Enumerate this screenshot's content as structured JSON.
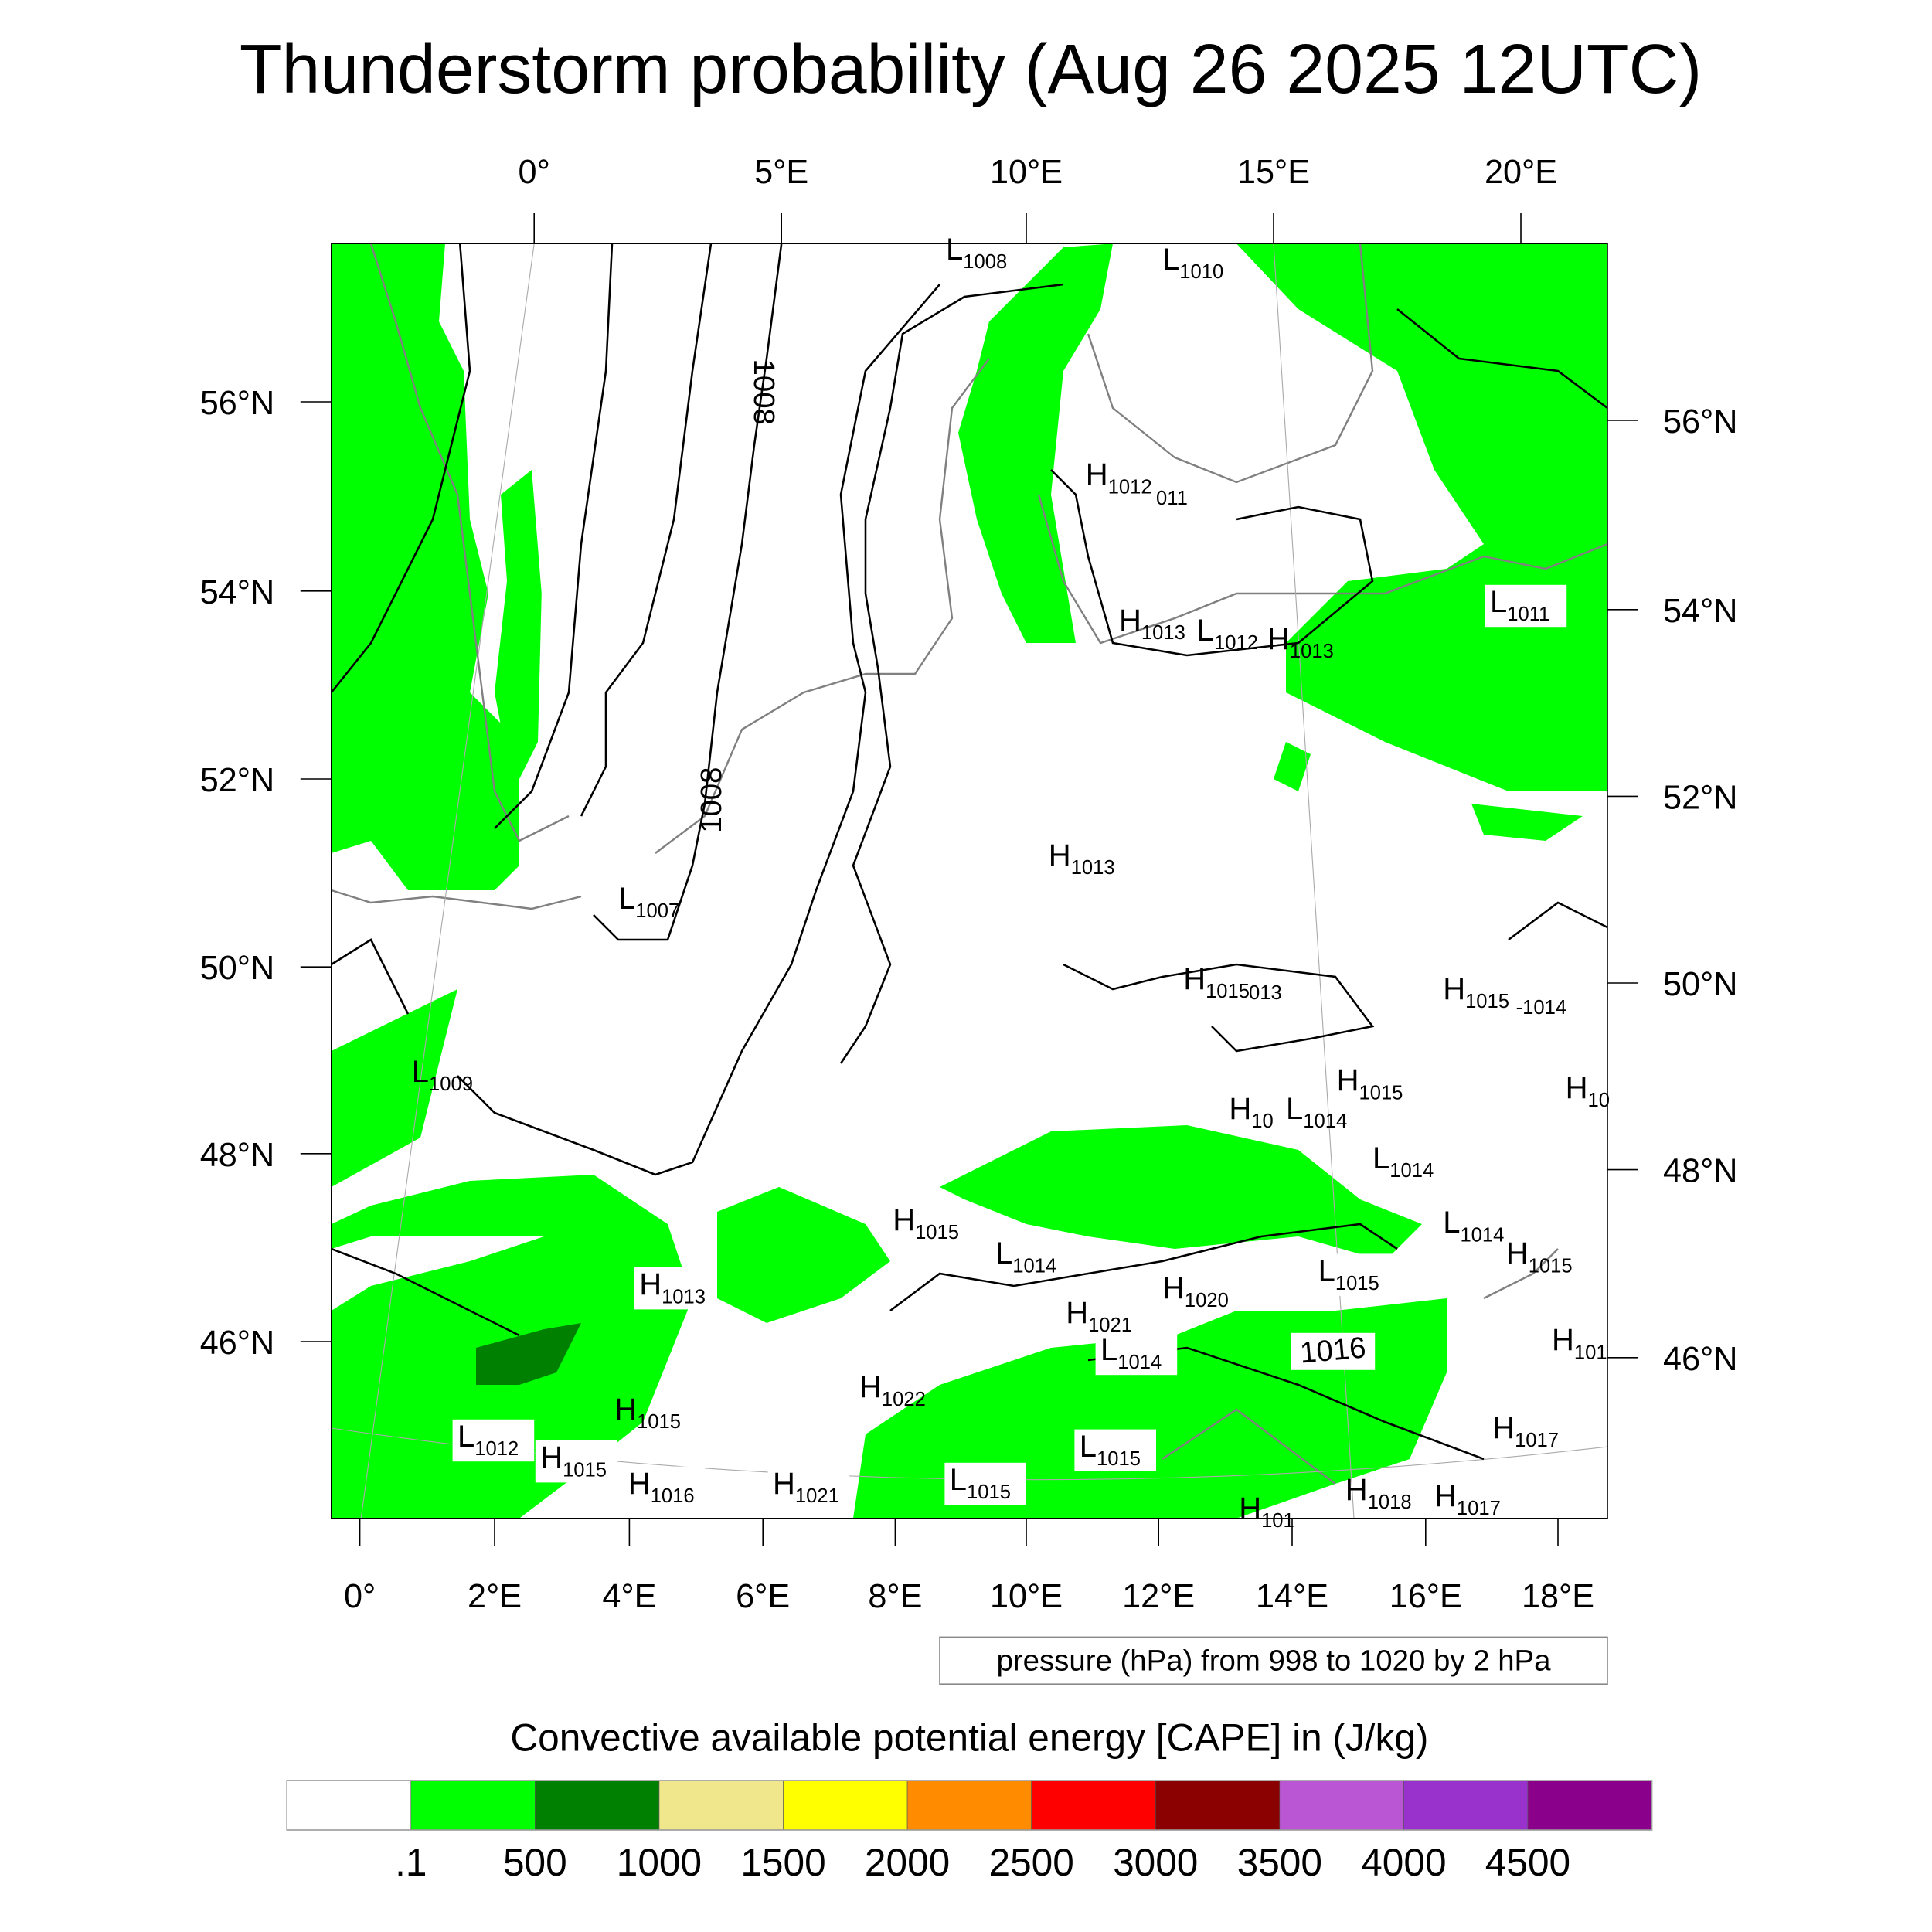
{
  "title": "Thunderstorm probability (Aug 26 2025 12UTC)",
  "axes": {
    "top_lon": [
      "0°",
      "5°E",
      "10°E",
      "15°E",
      "20°E"
    ],
    "bottom_lon": [
      "0°",
      "2°E",
      "4°E",
      "6°E",
      "8°E",
      "10°E",
      "12°E",
      "14°E",
      "16°E",
      "18°E"
    ],
    "left_lat": [
      "56°N",
      "54°N",
      "52°N",
      "50°N",
      "48°N",
      "46°N"
    ],
    "right_lat": [
      "56°N",
      "54°N",
      "52°N",
      "50°N",
      "48°N",
      "46°N"
    ]
  },
  "pressure_note": "pressure (hPa) from 998 to 1020 by 2 hPa",
  "contour_labels": [
    "1008",
    "1008",
    "1016"
  ],
  "pressure_centers": [
    {
      "t": "L",
      "v": "1008"
    },
    {
      "t": "L",
      "v": "1010"
    },
    {
      "t": "H",
      "v": "1012"
    },
    {
      "t": "",
      "v": "011"
    },
    {
      "t": "L",
      "v": "1011"
    },
    {
      "t": "H",
      "v": "1013"
    },
    {
      "t": "L",
      "v": "1012"
    },
    {
      "t": "H",
      "v": "1013"
    },
    {
      "t": "H",
      "v": "1013"
    },
    {
      "t": "L",
      "v": "1007"
    },
    {
      "t": "L",
      "v": "1009"
    },
    {
      "t": "H",
      "v": "1015"
    },
    {
      "t": "",
      "v": "013"
    },
    {
      "t": "H",
      "v": "1015"
    },
    {
      "t": "",
      "v": "-1014"
    },
    {
      "t": "H",
      "v": "1015"
    },
    {
      "t": "H",
      "v": "10"
    },
    {
      "t": "L",
      "v": "1014"
    },
    {
      "t": "L",
      "v": "1014"
    },
    {
      "t": "H",
      "v": "10"
    },
    {
      "t": "L",
      "v": "1014"
    },
    {
      "t": "H",
      "v": "1015"
    },
    {
      "t": "H",
      "v": "1015"
    },
    {
      "t": "L",
      "v": "1014"
    },
    {
      "t": "L",
      "v": "1015"
    },
    {
      "t": "H",
      "v": "1013"
    },
    {
      "t": "H",
      "v": "1021"
    },
    {
      "t": "H",
      "v": "1020"
    },
    {
      "t": "L",
      "v": "1014"
    },
    {
      "t": "H",
      "v": "101"
    },
    {
      "t": "H",
      "v": "1022"
    },
    {
      "t": "H",
      "v": "1015"
    },
    {
      "t": "L",
      "v": "1012"
    },
    {
      "t": "H",
      "v": "1015"
    },
    {
      "t": "H",
      "v": "1016"
    },
    {
      "t": "H",
      "v": "1021"
    },
    {
      "t": "L",
      "v": "1015"
    },
    {
      "t": "L",
      "v": "1015"
    },
    {
      "t": "H",
      "v": "1017"
    },
    {
      "t": "H",
      "v": "1018"
    },
    {
      "t": "H",
      "v": "1017"
    },
    {
      "t": "H",
      "v": "101"
    }
  ],
  "colorbar": {
    "title": "Convective available potential energy [CAPE] in (J/kg)",
    "colors": [
      "#ffffff",
      "#00ff00",
      "#008000",
      "#f0e68c",
      "#ffff00",
      "#ff8c00",
      "#ff0000",
      "#8b0000",
      "#ba55d3",
      "#9932cc",
      "#8b008b"
    ],
    "labels": [
      ".1",
      "500",
      "1000",
      "1500",
      "2000",
      "2500",
      "3000",
      "3500",
      "4000",
      "4500"
    ]
  },
  "colors": {
    "cape_low": "#00ff00",
    "cape_mid": "#008000",
    "coast": "#808080",
    "isobar": "#000000"
  }
}
